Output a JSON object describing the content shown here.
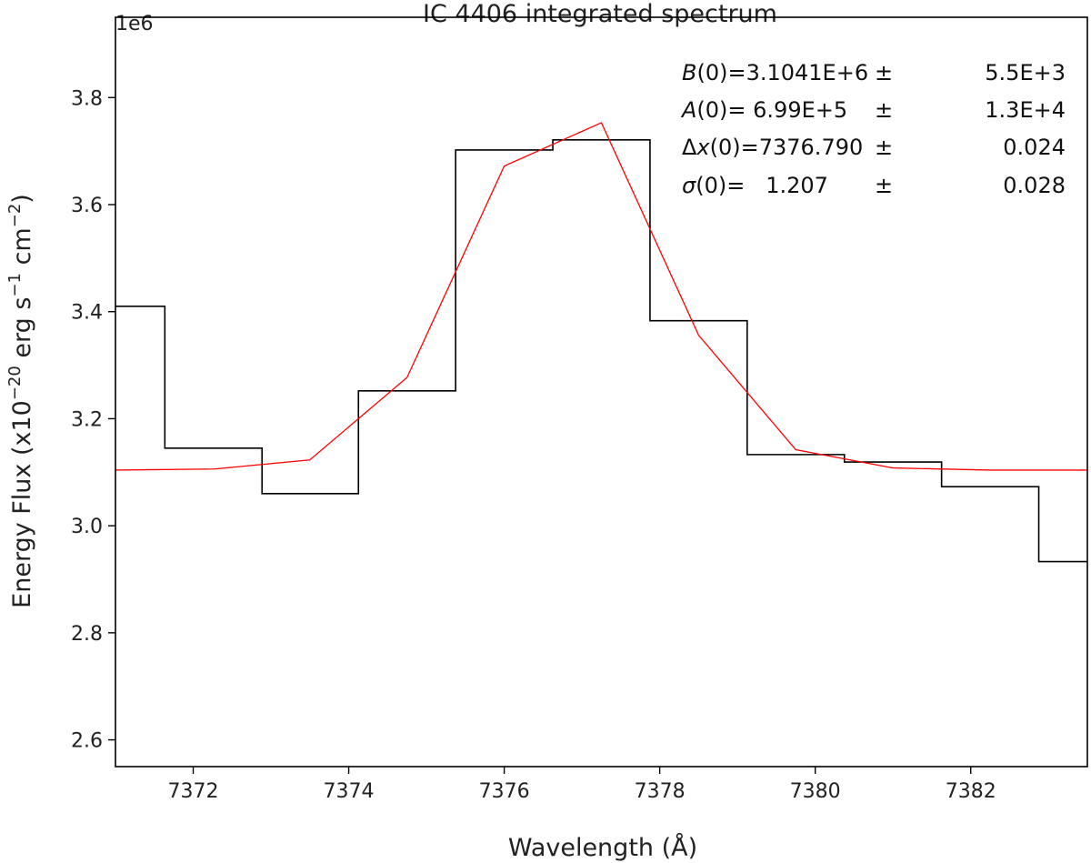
{
  "chart_data": {
    "type": "line",
    "title": "IC 4406 integrated spectrum",
    "xlabel": "Wavelength (Å)",
    "ylabel": "Energy Flux (x10⁻²⁰ erg s⁻¹ cm⁻²)",
    "ylabel_parts": {
      "a": "Energy Flux (x10",
      "a_sup": "−20",
      "b": " erg s",
      "b_sup": "−1",
      "c": " cm",
      "c_sup": "−2",
      "d": ")"
    },
    "offset_label": "1e6",
    "xlim": [
      7371.0,
      7383.5
    ],
    "ylim": [
      2.55,
      3.95
    ],
    "y_scale_factor": 1000000,
    "x_ticks": [
      7372,
      7374,
      7376,
      7378,
      7380,
      7382
    ],
    "x_tick_labels": [
      "7372",
      "7374",
      "7376",
      "7378",
      "7380",
      "7382"
    ],
    "y_ticks": [
      2.6,
      2.8,
      3.0,
      3.2,
      3.4,
      3.6,
      3.8
    ],
    "y_tick_labels": [
      "2.6",
      "2.8",
      "3.0",
      "3.2",
      "3.4",
      "3.6",
      "3.8"
    ],
    "grid": false,
    "series": [
      {
        "style": "steps-mid",
        "color": "#000000",
        "x": [
          7371.0,
          7372.27,
          7373.5,
          7374.75,
          7376.0,
          7377.25,
          7378.5,
          7379.75,
          7381.0,
          7382.25,
          7383.5
        ],
        "y": [
          3.41,
          3.145,
          3.06,
          3.252,
          3.702,
          3.721,
          3.383,
          3.133,
          3.119,
          3.073,
          2.933
        ]
      },
      {
        "style": "line",
        "color": "#ff0000",
        "x": [
          7371.0,
          7372.27,
          7373.5,
          7374.75,
          7376.0,
          7377.25,
          7378.5,
          7379.75,
          7381.0,
          7382.25,
          7383.5
        ],
        "y": [
          3.104,
          3.106,
          3.123,
          3.277,
          3.672,
          3.753,
          3.356,
          3.142,
          3.108,
          3.104,
          3.104
        ]
      }
    ],
    "annotations": [
      {
        "lhs_italic": "B",
        "lhs_rest": "(0)=3.1041E+6",
        "pm": "±",
        "err": "5.5E+3"
      },
      {
        "lhs_italic": "A",
        "lhs_rest": "(0)= 6.99E+5",
        "pm": "±",
        "err": "1.3E+4"
      },
      {
        "lhs_prefix": "Δ",
        "lhs_italic": "x",
        "lhs_rest": "(0)=7376.790",
        "pm": "±",
        "err": "0.024"
      },
      {
        "lhs_italic": "σ",
        "lhs_rest": "(0)=   1.207",
        "pm": "±",
        "err": "0.028"
      }
    ]
  }
}
